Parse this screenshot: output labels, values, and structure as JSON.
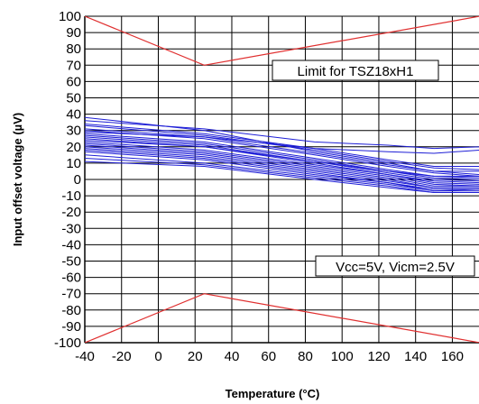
{
  "chart_data": {
    "type": "line",
    "title": "",
    "xlabel": "Temperature (°C)",
    "ylabel": "Input offset voltage (µV)",
    "xlim": [
      -40,
      175
    ],
    "ylim": [
      -100,
      100
    ],
    "x_ticks": [
      -40,
      -20,
      0,
      20,
      40,
      60,
      80,
      100,
      120,
      140,
      160
    ],
    "y_ticks": [
      100,
      90,
      80,
      70,
      60,
      50,
      40,
      30,
      20,
      10,
      0,
      -10,
      -20,
      -30,
      -40,
      -50,
      -60,
      -70,
      -80,
      -90,
      -100
    ],
    "x_tick_labels": [
      "-40",
      "-20",
      "0",
      "20",
      "40",
      "60",
      "80",
      "100",
      "120",
      "140",
      "160"
    ],
    "y_tick_labels": [
      "100",
      "90",
      "80",
      "70",
      "60",
      "50",
      "40",
      "30",
      "20",
      "10",
      "0",
      "-10",
      "-20",
      "-30",
      "-40",
      "-50",
      "-60",
      "-70",
      "-80",
      "-90",
      "-100"
    ],
    "grid": true,
    "annotations": {
      "limit": "Limit for TSZ18xH1",
      "conditions": "Vcc=5V, Vicm=2.5V"
    },
    "colors": {
      "measured": "#1f1fd6",
      "limit": "#e03030",
      "grid": "#000000"
    },
    "limit_lines": [
      {
        "x": [
          -40,
          25,
          175
        ],
        "y": [
          100,
          70,
          100
        ]
      },
      {
        "x": [
          -40,
          25,
          175
        ],
        "y": [
          -100,
          -70,
          -100
        ]
      }
    ],
    "series_x": [
      -40,
      25,
      85,
      125,
      150,
      175
    ],
    "series": [
      {
        "values": [
          38,
          30,
          17,
          10,
          5,
          5
        ]
      },
      {
        "values": [
          36,
          31,
          23,
          21,
          19,
          20
        ]
      },
      {
        "values": [
          34,
          28,
          19,
          12,
          8,
          8
        ]
      },
      {
        "values": [
          33,
          27,
          18,
          11,
          7,
          6
        ]
      },
      {
        "values": [
          31,
          26,
          16,
          9,
          5,
          3
        ]
      },
      {
        "values": [
          30,
          25,
          15,
          8,
          4,
          2
        ]
      },
      {
        "values": [
          29,
          26,
          19,
          17,
          16,
          18
        ]
      },
      {
        "values": [
          28,
          23,
          13,
          6,
          2,
          1
        ]
      },
      {
        "values": [
          27,
          22,
          12,
          5,
          1,
          0
        ]
      },
      {
        "values": [
          26,
          21,
          11,
          4,
          0,
          -1
        ]
      },
      {
        "values": [
          25,
          20,
          10,
          3,
          -1,
          -2
        ]
      },
      {
        "values": [
          24,
          20,
          11,
          5,
          2,
          2
        ]
      },
      {
        "values": [
          23,
          18,
          9,
          3,
          -2,
          -3
        ]
      },
      {
        "values": [
          22,
          17,
          8,
          2,
          -3,
          -4
        ]
      },
      {
        "values": [
          21,
          16,
          7,
          1,
          -4,
          -4
        ]
      },
      {
        "values": [
          20,
          15,
          6,
          0,
          -5,
          -5
        ]
      },
      {
        "values": [
          19,
          14,
          5,
          -1,
          -5,
          -5
        ]
      },
      {
        "values": [
          18,
          13,
          4,
          -2,
          -6,
          -6
        ]
      },
      {
        "values": [
          17,
          12,
          3,
          -2,
          -7,
          -6
        ]
      },
      {
        "values": [
          15,
          10,
          2,
          -3,
          -7,
          -7
        ]
      },
      {
        "values": [
          13,
          9,
          1,
          -4,
          -8,
          -8
        ]
      },
      {
        "values": [
          11,
          8,
          0,
          -5,
          -8,
          -8
        ]
      }
    ]
  }
}
